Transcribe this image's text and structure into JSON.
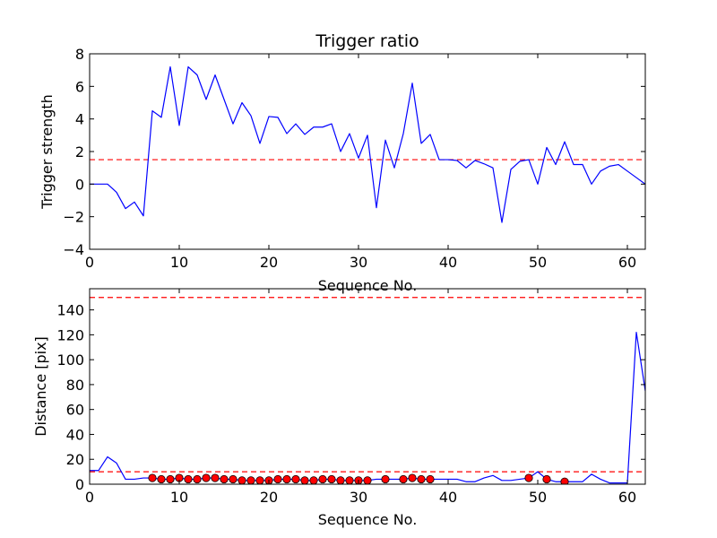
{
  "chart_data": [
    {
      "type": "line",
      "title": "Trigger ratio",
      "xlabel": "Sequence No.",
      "ylabel": "Trigger strength",
      "xlim": [
        0,
        62
      ],
      "ylim": [
        -4,
        8
      ],
      "xticks": [
        0,
        10,
        20,
        30,
        40,
        50,
        60
      ],
      "yticks": [
        -4,
        -2,
        0,
        2,
        4,
        6,
        8
      ],
      "grid": false,
      "colors": {
        "line": "#0000ff",
        "threshold": "#ff0000"
      },
      "threshold": 1.5,
      "series": [
        {
          "x": [
            0,
            1,
            2,
            3,
            4,
            5,
            6,
            7,
            8,
            9,
            10,
            11,
            12,
            13,
            14,
            15,
            16,
            17,
            18,
            19,
            20,
            21,
            22,
            23,
            24,
            25,
            26,
            27,
            28,
            29,
            30,
            31,
            32,
            33,
            34,
            35,
            36,
            37,
            38,
            39,
            40,
            41,
            42,
            43,
            44,
            45,
            46,
            47,
            48,
            49,
            50,
            51,
            52,
            53,
            54,
            55,
            56,
            57,
            58,
            59,
            60,
            61,
            62
          ],
          "y": [
            0,
            0,
            0,
            -0.5,
            -1.5,
            -1.1,
            -1.95,
            4.5,
            4.1,
            7.2,
            3.6,
            7.2,
            6.7,
            5.2,
            6.7,
            5.2,
            3.7,
            5.0,
            4.2,
            2.5,
            4.15,
            4.1,
            3.1,
            3.7,
            3.05,
            3.5,
            3.5,
            3.7,
            2.0,
            3.1,
            1.6,
            3.0,
            -1.45,
            2.7,
            1.0,
            3.1,
            6.2,
            2.5,
            3.05,
            1.5,
            1.5,
            1.45,
            1.0,
            1.45,
            1.25,
            1.0,
            -2.35,
            0.9,
            1.4,
            1.5,
            0,
            2.25,
            1.2,
            2.6,
            1.2,
            1.2,
            0,
            0.8,
            1.1,
            1.2,
            0.8,
            0.4,
            0
          ]
        }
      ]
    },
    {
      "type": "line",
      "title": "",
      "xlabel": "Sequence No.",
      "ylabel": "Distance [pix]",
      "xlim": [
        0,
        62
      ],
      "ylim": [
        0,
        157
      ],
      "xticks": [
        0,
        10,
        20,
        30,
        40,
        50,
        60
      ],
      "yticks": [
        0,
        20,
        40,
        60,
        80,
        100,
        120,
        140
      ],
      "grid": false,
      "colors": {
        "line": "#0000ff",
        "threshold": "#ff0000",
        "markers": "#ff0000"
      },
      "thresholds": [
        10,
        150
      ],
      "series": [
        {
          "x": [
            0,
            1,
            2,
            3,
            4,
            5,
            6,
            7,
            8,
            9,
            10,
            11,
            12,
            13,
            14,
            15,
            16,
            17,
            18,
            19,
            20,
            21,
            22,
            23,
            24,
            25,
            26,
            27,
            28,
            29,
            30,
            31,
            32,
            33,
            34,
            35,
            36,
            37,
            38,
            39,
            40,
            41,
            42,
            43,
            44,
            45,
            46,
            47,
            48,
            49,
            50,
            51,
            52,
            53,
            54,
            55,
            56,
            57,
            58,
            59,
            60,
            61,
            62
          ],
          "y": [
            11,
            11,
            22,
            17,
            4,
            4,
            5,
            5,
            4,
            4,
            5,
            4,
            4,
            5,
            5,
            4,
            4,
            3,
            3,
            3,
            3,
            4,
            4,
            4,
            3,
            3,
            4,
            4,
            3,
            3,
            3,
            3,
            4,
            4,
            4,
            4,
            5,
            4,
            4,
            4,
            4,
            4,
            2,
            2,
            5,
            7,
            3,
            3,
            4,
            5,
            10,
            4,
            2,
            2,
            2,
            2,
            8,
            4,
            1,
            1,
            1,
            122,
            75
          ]
        },
        {
          "markers": true,
          "x": [
            7,
            8,
            9,
            10,
            11,
            12,
            13,
            14,
            15,
            16,
            17,
            18,
            19,
            20,
            21,
            22,
            23,
            24,
            25,
            26,
            27,
            28,
            29,
            30,
            31,
            33,
            35,
            36,
            37,
            38,
            49,
            51,
            53
          ],
          "y": [
            5,
            4,
            4,
            5,
            4,
            4,
            5,
            5,
            4,
            4,
            3,
            3,
            3,
            3,
            4,
            4,
            4,
            3,
            3,
            4,
            4,
            3,
            3,
            3,
            3,
            4,
            4,
            5,
            4,
            4,
            5,
            4,
            2
          ]
        }
      ]
    }
  ]
}
